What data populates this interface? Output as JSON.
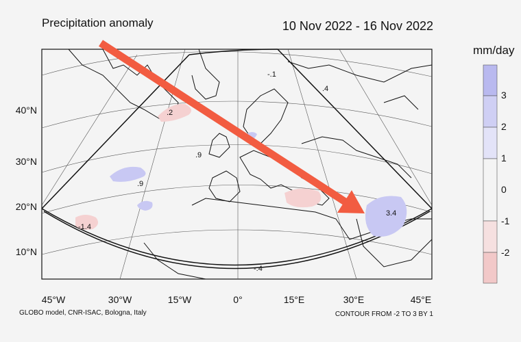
{
  "title": "Precipitation anomaly",
  "date_range": "10 Nov 2022 - 16 Nov 2022",
  "unit": "mm/day",
  "credit": "GLOBO model, CNR-ISAC, Bologna, Italy",
  "contour_note": "CONTOUR FROM -2 TO 3 BY 1",
  "lat_labels": [
    "40°N",
    "30°N",
    "20°N",
    "10°N"
  ],
  "lon_labels": [
    "45°W",
    "30°W",
    "15°W",
    "0°",
    "15°E",
    "30°E",
    "45°E"
  ],
  "legend": {
    "ticks": [
      "3",
      "2",
      "1",
      "0",
      "-1",
      "-2"
    ],
    "colors": [
      "#b9b9ef",
      "#cfcff4",
      "#e3e3f8",
      "#f4f4f4",
      "#f6e0e0",
      "#f2c8c8"
    ]
  },
  "contour_labels": [
    ".2",
    ".9",
    ".9",
    "-1.4",
    "-.1",
    ".4",
    "3.4",
    "-.4"
  ],
  "colors": {
    "arrow": "#f25c41",
    "positive_anomaly": "#c8c8f3",
    "negative_anomaly": "#f5d1d1"
  }
}
